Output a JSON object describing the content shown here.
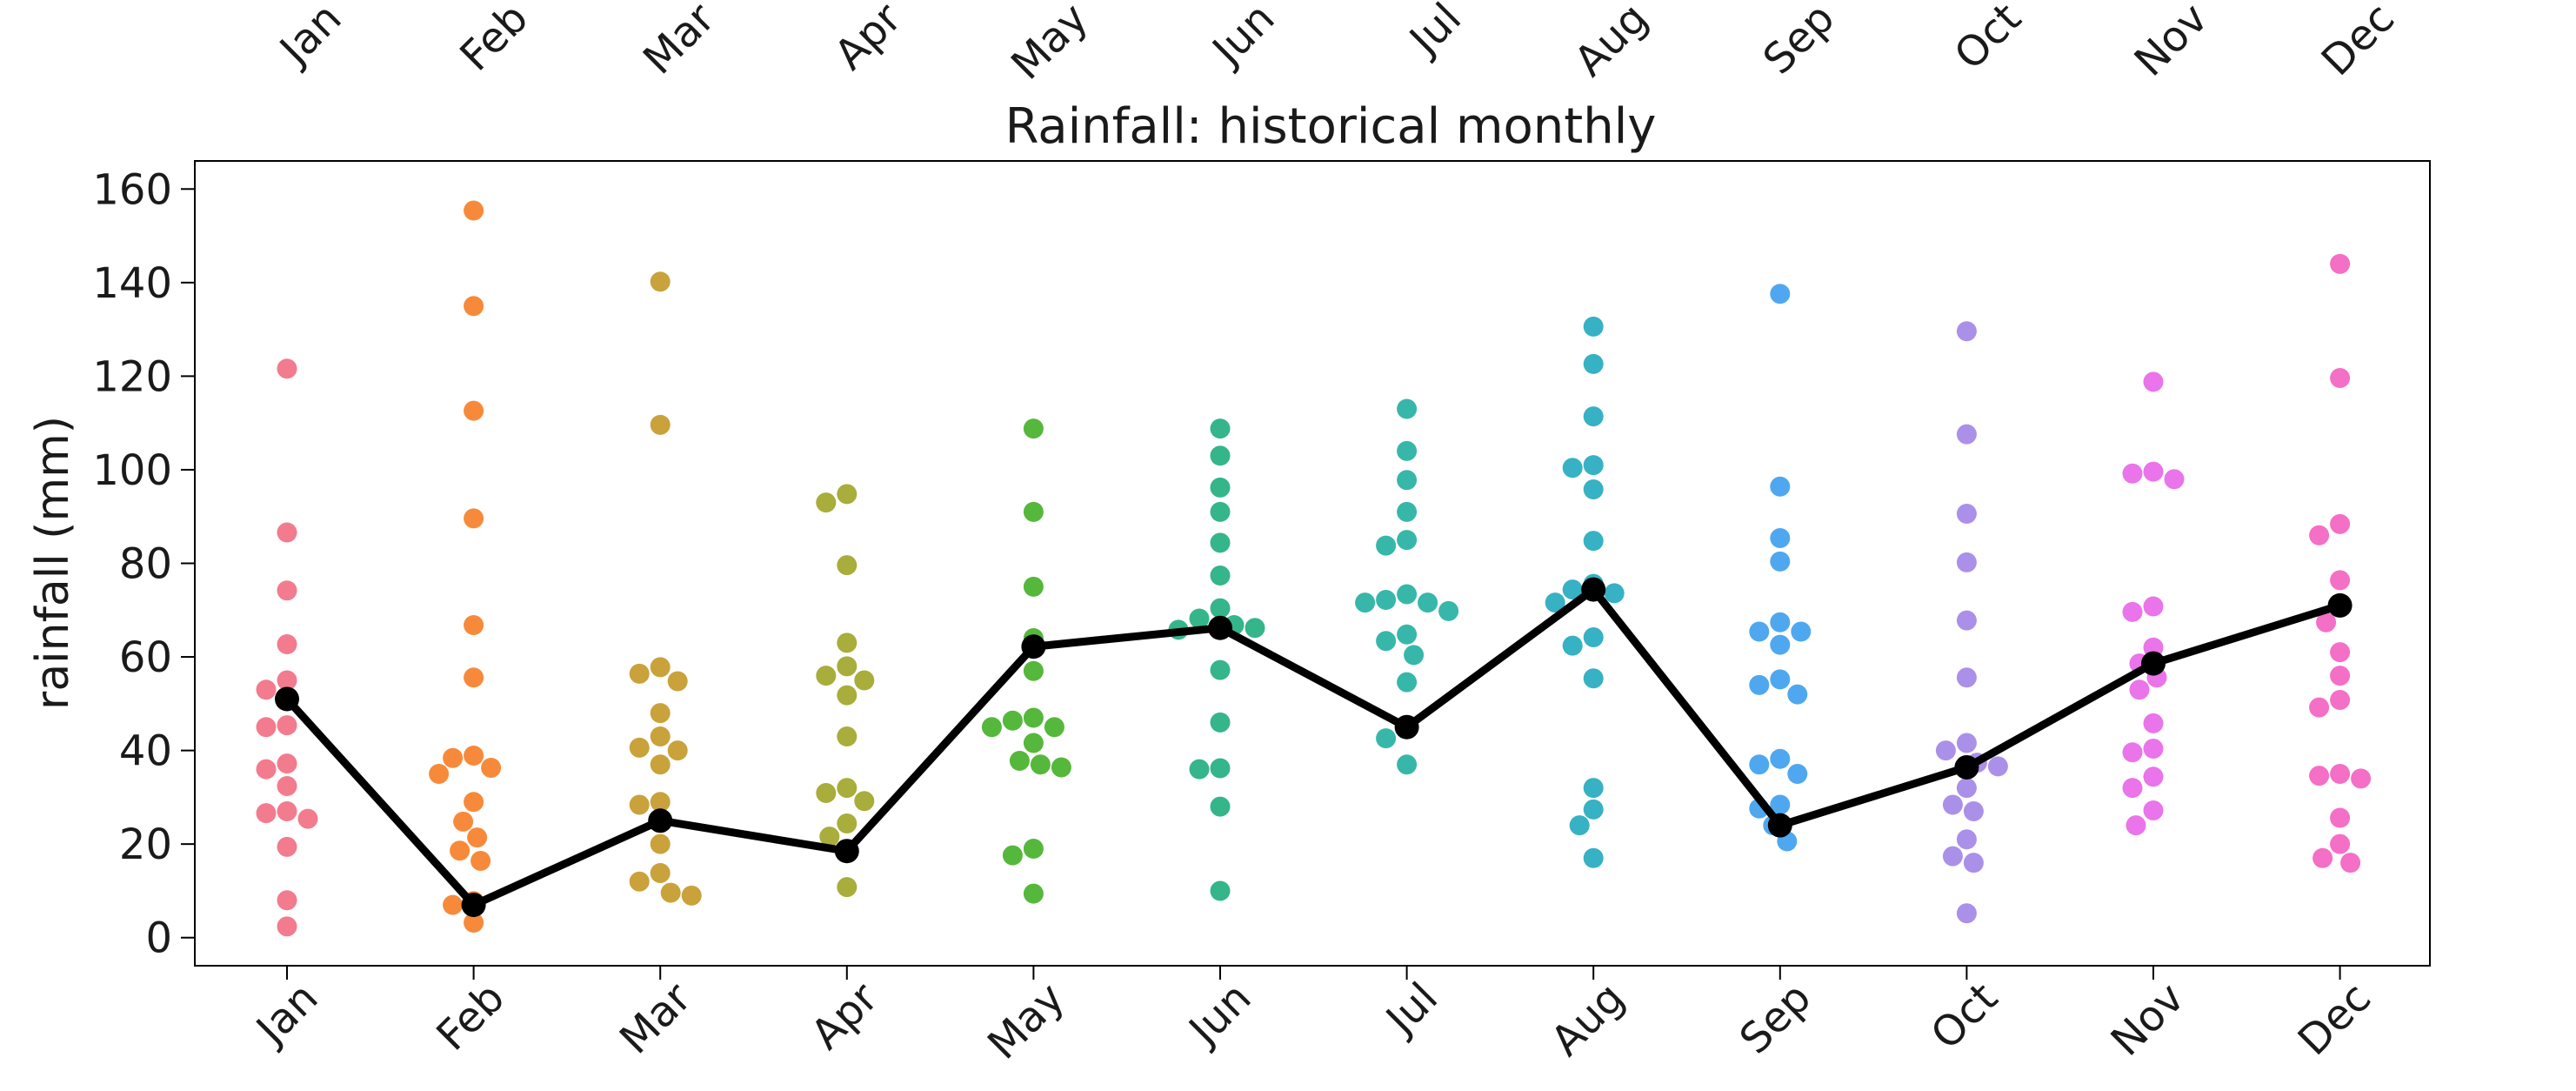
{
  "chart_data": {
    "type": "scatter",
    "title": "Rainfall: historical monthly",
    "xlabel": "",
    "ylabel": "rainfall (mm)",
    "ylim": [
      -6,
      166
    ],
    "yticks": [
      0,
      20,
      40,
      60,
      80,
      100,
      120,
      140,
      160
    ],
    "grid": false,
    "legend": "none",
    "categories": [
      "Jan",
      "Feb",
      "Mar",
      "Apr",
      "May",
      "Jun",
      "Jul",
      "Aug",
      "Sep",
      "Oct",
      "Nov",
      "Dec"
    ],
    "month_colors": [
      "#f37b8e",
      "#f78a3a",
      "#c9a23b",
      "#a8ad3c",
      "#55b83c",
      "#35b58a",
      "#37b7aa",
      "#37b1c4",
      "#4fa8ef",
      "#ab90ea",
      "#ea74ea",
      "#f46fc6"
    ],
    "line_color": "#000000",
    "monthly_values": [
      [
        121.6,
        86.6,
        74.2,
        62.7,
        55.0,
        53.0,
        45.4,
        45.0,
        37.2,
        36.0,
        32.4,
        27.0,
        26.6,
        25.4,
        19.4,
        8.0,
        2.4
      ],
      [
        155.4,
        135.0,
        112.6,
        89.6,
        66.8,
        55.6,
        38.9,
        38.4,
        36.3,
        35.0,
        29.0,
        24.8,
        21.4,
        18.6,
        16.4,
        7.8,
        7.0,
        3.2
      ],
      [
        140.2,
        109.6,
        57.8,
        56.4,
        54.8,
        48.0,
        43.0,
        40.6,
        40.0,
        37.0,
        29.0,
        28.4,
        20.0,
        13.8,
        12.0,
        9.6,
        9.0
      ],
      [
        94.8,
        93.0,
        79.6,
        63.0,
        58.0,
        56.0,
        55.0,
        51.8,
        43.0,
        32.0,
        30.9,
        29.2,
        24.4,
        21.6,
        10.8
      ],
      [
        108.8,
        91.0,
        75.0,
        64.0,
        57.0,
        47.0,
        46.4,
        45.0,
        45.0,
        41.6,
        37.8,
        37.0,
        36.4,
        19.0,
        17.6,
        9.4
      ],
      [
        108.8,
        103.0,
        96.2,
        91.0,
        84.4,
        77.4,
        70.4,
        68.2,
        66.8,
        66.2,
        65.8,
        57.2,
        46.0,
        36.2,
        36.0,
        28.0,
        10.0
      ],
      [
        113.0,
        104.0,
        97.8,
        91.0,
        85.0,
        83.8,
        73.4,
        72.2,
        71.6,
        71.6,
        69.8,
        64.8,
        63.4,
        60.4,
        54.6,
        45.0,
        42.6,
        37.0
      ],
      [
        130.6,
        122.6,
        111.4,
        101.0,
        100.4,
        95.8,
        84.8,
        75.6,
        74.4,
        73.6,
        71.6,
        64.2,
        62.4,
        55.4,
        32.0,
        27.4,
        24.0,
        17.0
      ],
      [
        137.6,
        96.4,
        85.4,
        80.4,
        67.4,
        65.4,
        65.4,
        62.6,
        55.2,
        54.0,
        52.0,
        38.2,
        37.0,
        35.0,
        28.4,
        27.6,
        24.0,
        20.6
      ],
      [
        129.6,
        107.6,
        90.6,
        80.2,
        67.8,
        55.6,
        41.6,
        40.0,
        37.4,
        36.6,
        32.0,
        28.4,
        27.0,
        21.0,
        17.4,
        16.0,
        5.2
      ],
      [
        118.8,
        99.6,
        99.2,
        98.0,
        70.8,
        69.6,
        62.0,
        58.6,
        55.6,
        53.0,
        45.8,
        40.4,
        39.6,
        34.4,
        32.0,
        27.2,
        24.0
      ],
      [
        144.0,
        119.6,
        88.4,
        86.0,
        76.4,
        71.0,
        67.4,
        61.0,
        56.0,
        50.8,
        49.2,
        35.0,
        34.6,
        34.0,
        25.6,
        20.0,
        17.0,
        16.0
      ]
    ],
    "series": [
      {
        "name": "",
        "values": [
          51.0,
          7.0,
          25.0,
          18.5,
          62.2,
          66.2,
          45.0,
          74.4,
          24.0,
          36.4,
          58.6,
          71.0
        ]
      }
    ]
  }
}
